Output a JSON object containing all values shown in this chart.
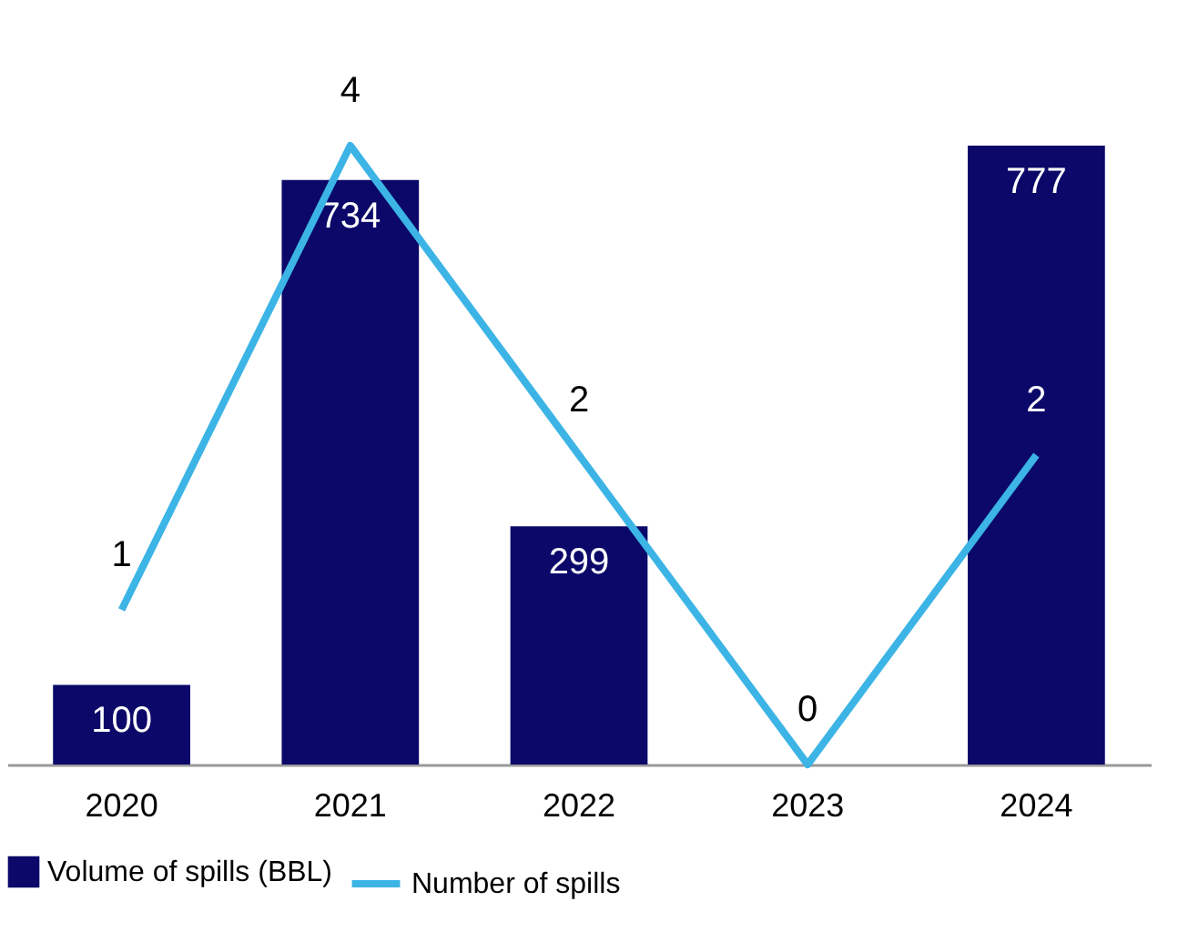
{
  "chart_data": {
    "type": "bar",
    "categories": [
      "2020",
      "2021",
      "2022",
      "2023",
      "2024"
    ],
    "series": [
      {
        "name": "Volume of spills (BBL)",
        "color": "#0b0869",
        "values": [
          100,
          734,
          299,
          0,
          777
        ],
        "value_labels": [
          "100",
          "734",
          "299",
          null,
          "777"
        ]
      },
      {
        "type": "line",
        "name": "Number of spills",
        "color": "#3cb4e5",
        "axis": "y2",
        "values": [
          1,
          4,
          2,
          0,
          2
        ],
        "value_labels": [
          "1",
          "4",
          "2",
          "0",
          "2"
        ]
      }
    ],
    "legend": "bottom",
    "grid": false
  }
}
